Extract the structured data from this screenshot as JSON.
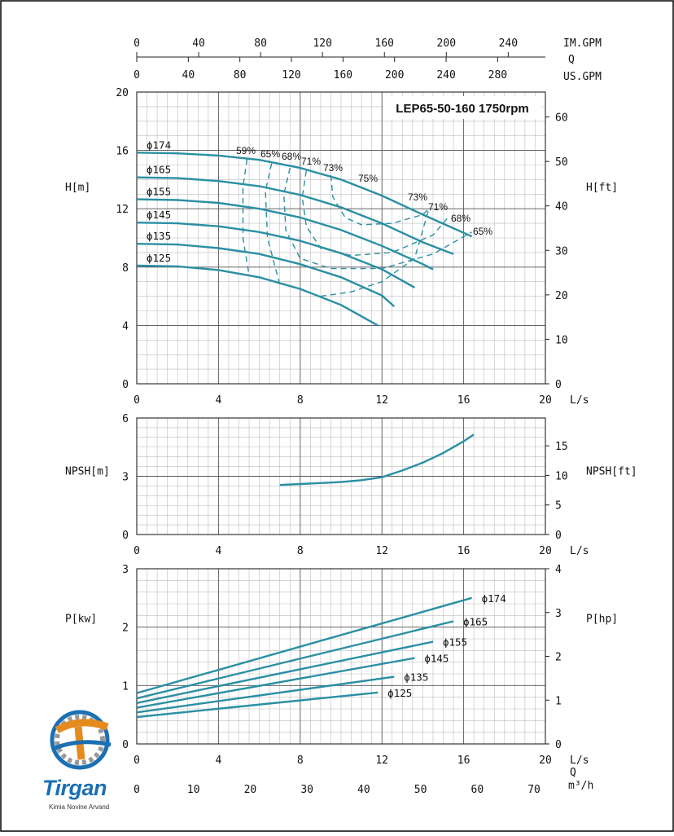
{
  "chart_data": [
    {
      "type": "line",
      "title": "LEP65-50-160 1750rpm",
      "ylabel": "H[m]",
      "ylabel_right": "H[ft]",
      "xlabel": "L/s",
      "xlim": [
        0,
        20
      ],
      "ylim": [
        0,
        20
      ],
      "ylim_right": [
        0,
        65.6
      ],
      "x_ticks": [
        "0",
        "4",
        "8",
        "12",
        "16",
        "20"
      ],
      "y_ticks": [
        "0",
        "4",
        "8",
        "12",
        "16",
        "20"
      ],
      "y_ticks_right": [
        "0",
        "10",
        "20",
        "30",
        "40",
        "50",
        "60"
      ],
      "top_axes": [
        {
          "label": "IM.GPM",
          "ticks": [
            "0",
            "40",
            "80",
            "120",
            "160",
            "200",
            "240"
          ],
          "max": 264
        },
        {
          "label": "US.GPM",
          "ticks": [
            "0",
            "40",
            "80",
            "120",
            "160",
            "200",
            "240",
            "280"
          ],
          "max": 317
        }
      ],
      "top_axis_q_label": "Q",
      "grid": true,
      "series": [
        {
          "name": "ϕ174",
          "x": [
            0,
            2,
            4,
            6,
            8,
            10,
            12,
            14,
            16.4
          ],
          "y": [
            15.85,
            15.8,
            15.65,
            15.35,
            14.8,
            14.0,
            12.9,
            11.6,
            10.1
          ]
        },
        {
          "name": "ϕ165",
          "x": [
            0,
            2,
            4,
            6,
            8,
            10,
            12,
            14,
            15.5
          ],
          "y": [
            14.15,
            14.1,
            13.9,
            13.55,
            12.95,
            12.1,
            11.0,
            9.7,
            8.9
          ]
        },
        {
          "name": "ϕ155",
          "x": [
            0,
            2,
            4,
            6,
            8,
            10,
            12,
            14,
            14.5
          ],
          "y": [
            12.65,
            12.6,
            12.4,
            12.0,
            11.4,
            10.55,
            9.45,
            8.2,
            7.85
          ]
        },
        {
          "name": "ϕ145",
          "x": [
            0,
            2,
            4,
            6,
            8,
            10,
            12,
            13.6
          ],
          "y": [
            11.05,
            11.0,
            10.8,
            10.4,
            9.8,
            8.95,
            7.85,
            6.6
          ]
        },
        {
          "name": "ϕ135",
          "x": [
            0,
            2,
            4,
            6,
            8,
            10,
            12,
            12.6
          ],
          "y": [
            9.6,
            9.55,
            9.3,
            8.9,
            8.2,
            7.3,
            6.05,
            5.3
          ]
        },
        {
          "name": "ϕ125",
          "x": [
            0,
            2,
            4,
            6,
            8,
            10,
            11.8
          ],
          "y": [
            8.1,
            8.05,
            7.8,
            7.3,
            6.5,
            5.4,
            4.0
          ]
        }
      ],
      "efficiency_lines": [
        {
          "label": "59%",
          "x": [
            5.4,
            5.2,
            5.2,
            5.5
          ],
          "y": [
            15.4,
            13.5,
            10.0,
            7.4
          ]
        },
        {
          "label": "65%",
          "x": [
            6.6,
            6.3,
            6.4,
            7.0
          ],
          "y": [
            15.1,
            13.2,
            10.0,
            6.8
          ]
        },
        {
          "label": "68%",
          "x": [
            7.5,
            7.2,
            7.3,
            8.0,
            9.5,
            12.0,
            14.5,
            16.4
          ],
          "y": [
            14.8,
            13.0,
            10.5,
            8.6,
            7.9,
            7.9,
            8.9,
            10.4
          ]
        },
        {
          "label": "71%",
          "x": [
            8.3,
            8.1,
            8.3,
            9.0,
            10.5,
            12.5,
            14.5,
            15.3
          ],
          "y": [
            14.6,
            12.8,
            10.8,
            9.3,
            8.8,
            9.0,
            10.2,
            11.5
          ]
        },
        {
          "label": "73%",
          "x": [
            9.5,
            9.6,
            10.2,
            11.0,
            12.5,
            14.0,
            14.3
          ],
          "y": [
            14.3,
            12.8,
            11.4,
            10.9,
            11.0,
            11.6,
            12.0
          ]
        },
        {
          "label": "73%",
          "x": [
            9.0,
            10.5,
            12.0,
            13.6,
            14.3
          ],
          "y": [
            6.0,
            6.3,
            7.0,
            8.6,
            12.0
          ]
        }
      ],
      "efficiency_labels": [
        "59%",
        "65%",
        "68%",
        "71%",
        "73%",
        "75%",
        "73%",
        "71%",
        "68%",
        "65%"
      ],
      "diameter_labels": [
        "ϕ174",
        "ϕ165",
        "ϕ155",
        "ϕ145",
        "ϕ135",
        "ϕ125"
      ]
    },
    {
      "type": "line",
      "ylabel": "NPSH[m]",
      "ylabel_right": "NPSH[ft]",
      "xlabel": "L/s",
      "xlim": [
        0,
        20
      ],
      "ylim": [
        0,
        6
      ],
      "ylim_right": [
        0,
        19.7
      ],
      "x_ticks": [
        "0",
        "4",
        "8",
        "12",
        "16",
        "20"
      ],
      "y_ticks": [
        "0",
        "3",
        "6"
      ],
      "y_ticks_right": [
        "0",
        "5",
        "10",
        "15"
      ],
      "grid": true,
      "series": [
        {
          "x": [
            7,
            8,
            9,
            10,
            11,
            12,
            13,
            14,
            15,
            16,
            16.5
          ],
          "y": [
            2.55,
            2.6,
            2.65,
            2.7,
            2.8,
            2.95,
            3.3,
            3.7,
            4.2,
            4.8,
            5.15
          ]
        }
      ]
    },
    {
      "type": "line",
      "ylabel": "P[kw]",
      "ylabel_right": "P[hp]",
      "xlabel": "L/s",
      "xlabel2": "Q",
      "xlabel3": "m³/h",
      "xlim": [
        0,
        20
      ],
      "ylim": [
        0,
        3
      ],
      "ylim_right": [
        0,
        4
      ],
      "x_ticks": [
        "0",
        "4",
        "8",
        "12",
        "16",
        "20"
      ],
      "x_ticks_m3h": [
        "0",
        "10",
        "20",
        "30",
        "40",
        "50",
        "60",
        "70"
      ],
      "y_ticks": [
        "0",
        "1",
        "2",
        "3"
      ],
      "y_ticks_right": [
        "0",
        "1",
        "2",
        "3",
        "4"
      ],
      "grid": true,
      "series": [
        {
          "name": "ϕ174",
          "x": [
            0,
            16.4
          ],
          "y": [
            0.87,
            2.5
          ]
        },
        {
          "name": "ϕ165",
          "x": [
            0,
            15.5
          ],
          "y": [
            0.78,
            2.1
          ]
        },
        {
          "name": "ϕ155",
          "x": [
            0,
            14.5
          ],
          "y": [
            0.7,
            1.75
          ]
        },
        {
          "name": "ϕ145",
          "x": [
            0,
            13.6
          ],
          "y": [
            0.62,
            1.47
          ]
        },
        {
          "name": "ϕ135",
          "x": [
            0,
            12.6
          ],
          "y": [
            0.54,
            1.15
          ]
        },
        {
          "name": "ϕ125",
          "x": [
            0,
            11.8
          ],
          "y": [
            0.46,
            0.88
          ]
        }
      ]
    }
  ],
  "logo": {
    "brand": "Tirgan",
    "subtitle": "Kimia Novine Arvand"
  },
  "colors": {
    "curve": "#2a8fa3",
    "grid_major": "#555555",
    "grid_minor": "#bdbdbd"
  }
}
